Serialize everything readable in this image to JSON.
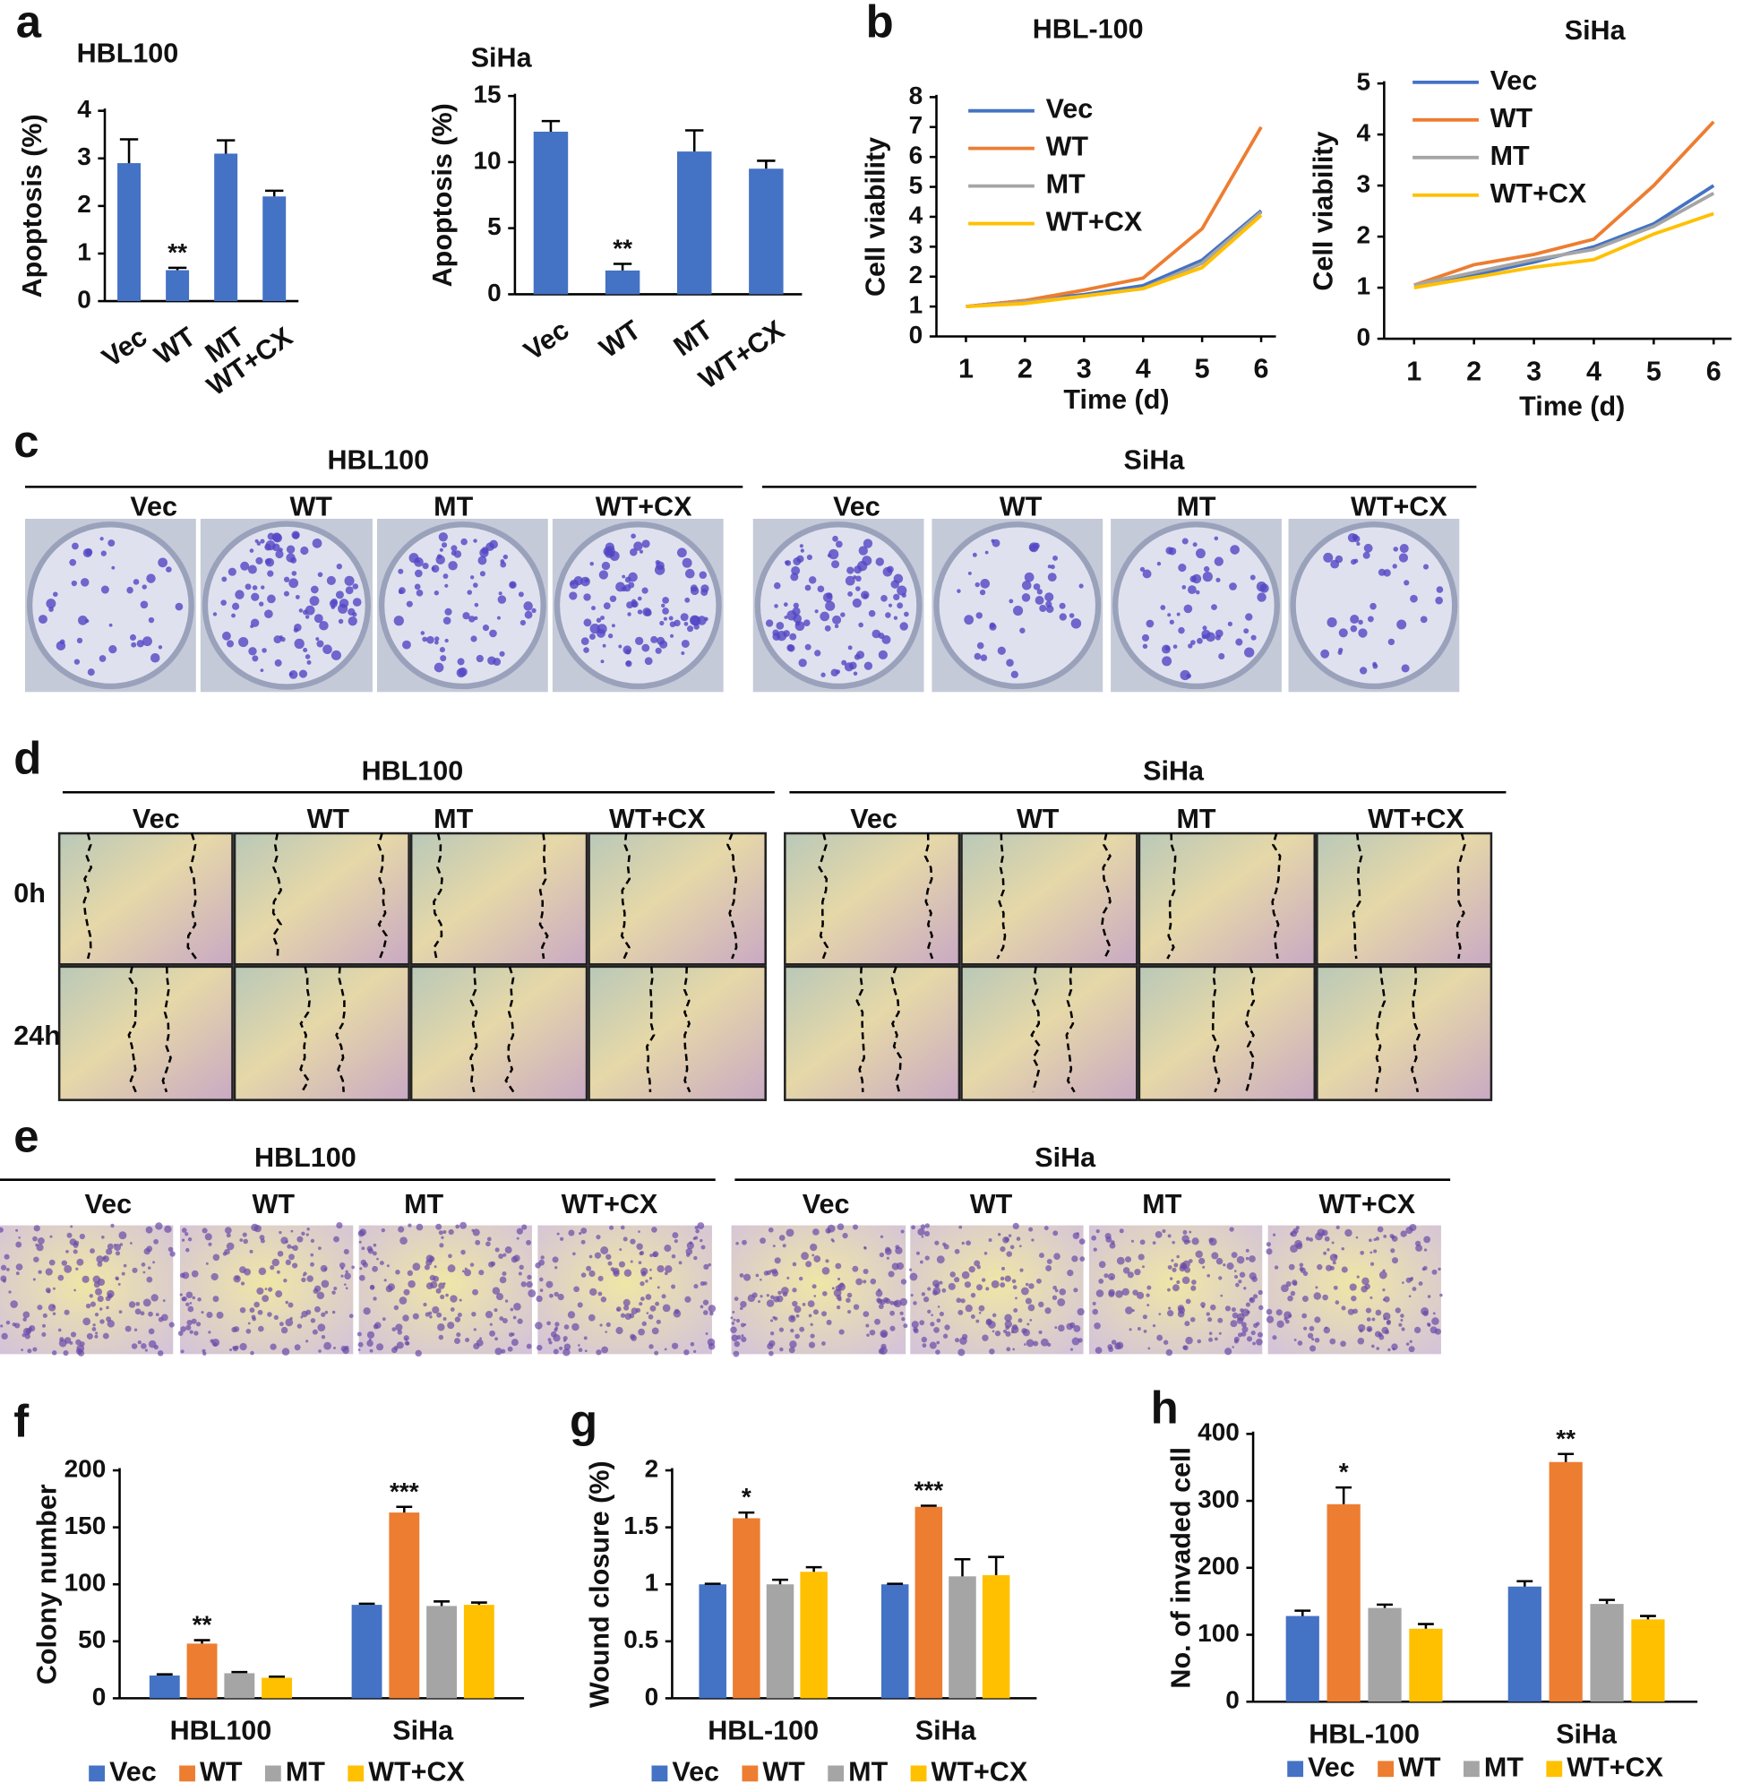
{
  "chart_data": [
    {
      "type": "bar",
      "letter": "a",
      "title": "HBL100",
      "y_label": "Apoptosis  (%)",
      "categories": [
        "Vec",
        "WT",
        "MT",
        "WT+CX"
      ],
      "values": [
        2.9,
        0.65,
        3.1,
        2.2
      ],
      "errors": [
        0.5,
        0.05,
        0.28,
        0.12
      ],
      "color": "#4472c4",
      "ylim": [
        0,
        4
      ],
      "yticks": [
        0,
        1,
        2,
        3,
        4
      ],
      "annotations": [
        {
          "text": "**",
          "category": "WT"
        }
      ]
    },
    {
      "type": "bar",
      "title": "SiHa",
      "y_label": "Apoptosis  (%)",
      "categories": [
        "Vec",
        "WT",
        "MT",
        "WT+CX"
      ],
      "values": [
        12.3,
        1.8,
        10.8,
        9.5
      ],
      "errors": [
        0.8,
        0.5,
        1.6,
        0.6
      ],
      "color": "#4472c4",
      "ylim": [
        0,
        15
      ],
      "yticks": [
        0,
        5,
        10,
        15
      ],
      "annotations": [
        {
          "text": "**",
          "category": "WT"
        }
      ]
    },
    {
      "type": "line",
      "letter": "b",
      "title": "HBL-100",
      "y_label": "Cell viability",
      "x_label": "Time (d)",
      "x": [
        1,
        2,
        3,
        4,
        5,
        6
      ],
      "xlim": [
        0.5,
        6.25
      ],
      "xticks": [
        1,
        2,
        3,
        4,
        5,
        6
      ],
      "ylim": [
        0,
        8
      ],
      "yticks": [
        0,
        1,
        2,
        3,
        4,
        5,
        6,
        7,
        8
      ],
      "legend": "upper left",
      "series": [
        {
          "name": "Vec",
          "color": "#4472c4",
          "values": [
            1,
            1.2,
            1.4,
            1.7,
            2.55,
            4.2
          ]
        },
        {
          "name": "WT",
          "color": "#ed7d31",
          "values": [
            1,
            1.2,
            1.55,
            1.95,
            3.6,
            7.0
          ]
        },
        {
          "name": "MT",
          "color": "#a5a5a5",
          "values": [
            1,
            1.15,
            1.35,
            1.6,
            2.45,
            4.15
          ]
        },
        {
          "name": "WT+CX",
          "color": "#ffc000",
          "values": [
            1,
            1.1,
            1.35,
            1.6,
            2.3,
            4.05
          ]
        }
      ]
    },
    {
      "type": "line",
      "title": "SiHa",
      "y_label": "Cell viability",
      "x_label": "Time (d)",
      "x": [
        1,
        2,
        3,
        4,
        5,
        6
      ],
      "xlim": [
        0.5,
        6.3
      ],
      "xticks": [
        1,
        2,
        3,
        4,
        5,
        6
      ],
      "ylim": [
        0,
        5
      ],
      "yticks": [
        0,
        1,
        2,
        3,
        4,
        5
      ],
      "legend": "upper left",
      "series": [
        {
          "name": "Vec",
          "color": "#4472c4",
          "values": [
            1.05,
            1.25,
            1.5,
            1.8,
            2.25,
            3.0
          ]
        },
        {
          "name": "WT",
          "color": "#ed7d31",
          "values": [
            1.05,
            1.45,
            1.65,
            1.95,
            3.0,
            4.25
          ]
        },
        {
          "name": "MT",
          "color": "#a5a5a5",
          "values": [
            1.05,
            1.3,
            1.55,
            1.75,
            2.2,
            2.85
          ]
        },
        {
          "name": "WT+CX",
          "color": "#ffc000",
          "values": [
            1.0,
            1.2,
            1.4,
            1.55,
            2.05,
            2.45
          ]
        }
      ]
    },
    {
      "type": "bar",
      "letter": "f",
      "y_label": "Colony number",
      "categories": [
        "HBL100",
        "SiHa"
      ],
      "ylim": [
        0,
        200
      ],
      "yticks": [
        0,
        50,
        100,
        150,
        200
      ],
      "legend": "bottom",
      "series": [
        {
          "name": "Vec",
          "color": "#4472c4",
          "values": [
            20,
            82
          ],
          "errors": [
            1,
            1
          ]
        },
        {
          "name": "WT",
          "color": "#ed7d31",
          "values": [
            48,
            163
          ],
          "errors": [
            3,
            5
          ]
        },
        {
          "name": "MT",
          "color": "#a5a5a5",
          "values": [
            22,
            81
          ],
          "errors": [
            1,
            4
          ]
        },
        {
          "name": "WT+CX",
          "color": "#ffc000",
          "values": [
            18,
            82
          ],
          "errors": [
            1,
            2
          ]
        }
      ],
      "annotations": [
        {
          "text": "**",
          "category": "HBL100",
          "series": "WT"
        },
        {
          "text": "***",
          "category": "SiHa",
          "series": "WT"
        }
      ]
    },
    {
      "type": "bar",
      "letter": "g",
      "y_label": "Wound closure  (%)",
      "categories": [
        "HBL-100",
        "SiHa"
      ],
      "ylim": [
        0,
        2
      ],
      "yticks": [
        0,
        0.5,
        1,
        1.5,
        2
      ],
      "legend": "bottom",
      "series": [
        {
          "name": "Vec",
          "color": "#4472c4",
          "values": [
            1,
            1
          ],
          "errors": [
            0.005,
            0.005
          ]
        },
        {
          "name": "WT",
          "color": "#ed7d31",
          "values": [
            1.58,
            1.68
          ],
          "errors": [
            0.05,
            0.01
          ]
        },
        {
          "name": "MT",
          "color": "#a5a5a5",
          "values": [
            1.0,
            1.07
          ],
          "errors": [
            0.04,
            0.15
          ]
        },
        {
          "name": "WT+CX",
          "color": "#ffc000",
          "values": [
            1.11,
            1.08
          ],
          "errors": [
            0.04,
            0.16
          ]
        }
      ],
      "annotations": [
        {
          "text": "*",
          "category": "HBL-100",
          "series": "WT"
        },
        {
          "text": "***",
          "category": "SiHa",
          "series": "WT"
        }
      ]
    },
    {
      "type": "bar",
      "letter": "h",
      "y_label": "No. of invaded cell",
      "categories": [
        "HBL-100",
        "SiHa"
      ],
      "ylim": [
        0,
        400
      ],
      "yticks": [
        0,
        100,
        200,
        300,
        400
      ],
      "legend": "bottom",
      "series": [
        {
          "name": "Vec",
          "color": "#4472c4",
          "values": [
            128,
            172
          ],
          "errors": [
            8,
            8
          ]
        },
        {
          "name": "WT",
          "color": "#ed7d31",
          "values": [
            295,
            358
          ],
          "errors": [
            25,
            12
          ]
        },
        {
          "name": "MT",
          "color": "#a5a5a5",
          "values": [
            140,
            146
          ],
          "errors": [
            5,
            6
          ]
        },
        {
          "name": "WT+CX",
          "color": "#ffc000",
          "values": [
            109,
            123
          ],
          "errors": [
            7,
            5
          ]
        }
      ],
      "annotations": [
        {
          "text": "*",
          "category": "HBL-100",
          "series": "WT"
        },
        {
          "text": "**",
          "category": "SiHa",
          "series": "WT"
        }
      ]
    }
  ],
  "photo_panels": [
    {
      "letter": "c",
      "groups": [
        {
          "title": "HBL100",
          "labels": [
            "Vec",
            "WT",
            "MT",
            "WT+CX"
          ]
        },
        {
          "title": "SiHa",
          "labels": [
            "Vec",
            "WT",
            "MT",
            "WT+CX"
          ]
        }
      ]
    },
    {
      "letter": "d",
      "rows": [
        "0h",
        "24h"
      ],
      "groups": [
        {
          "title": "HBL100",
          "labels": [
            "Vec",
            "WT",
            "MT",
            "WT+CX"
          ]
        },
        {
          "title": "SiHa",
          "labels": [
            "Vec",
            "WT",
            "MT",
            "WT+CX"
          ]
        }
      ]
    },
    {
      "letter": "e",
      "groups": [
        {
          "title": "HBL100",
          "labels": [
            "Vec",
            "WT",
            "MT",
            "WT+CX"
          ]
        },
        {
          "title": "SiHa",
          "labels": [
            "Vec",
            "WT",
            "MT",
            "WT+CX"
          ]
        }
      ]
    }
  ]
}
